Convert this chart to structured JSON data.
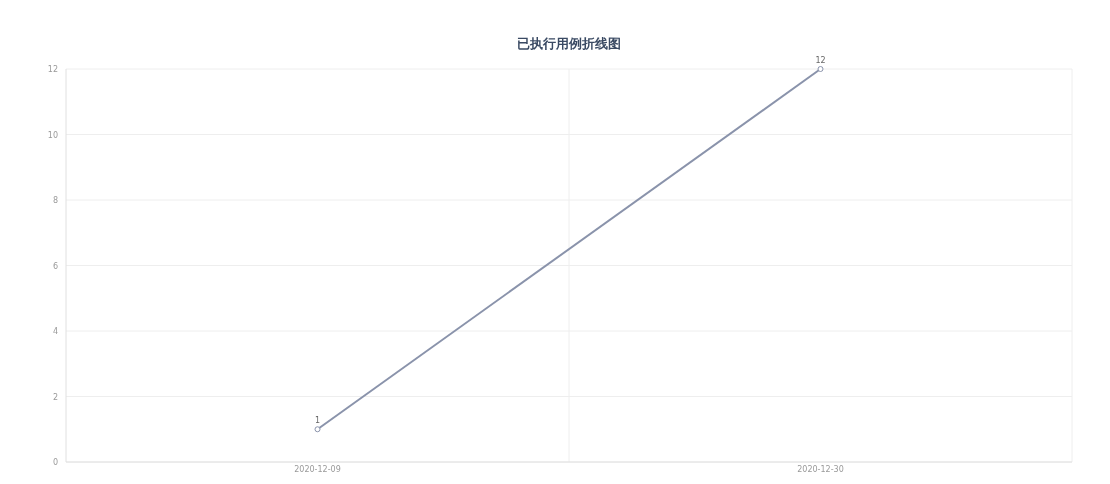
{
  "chart_data": {
    "type": "line",
    "title": "已执行用例折线图",
    "categories": [
      "2020-12-09",
      "2020-12-30"
    ],
    "series": [
      {
        "color": "#8a93ab",
        "values": [
          1,
          12
        ]
      }
    ],
    "ylim": [
      0,
      12
    ],
    "yticks": [
      0,
      2,
      4,
      6,
      8,
      10,
      12
    ],
    "grid": true,
    "marker": "circle",
    "data_labels": true
  }
}
